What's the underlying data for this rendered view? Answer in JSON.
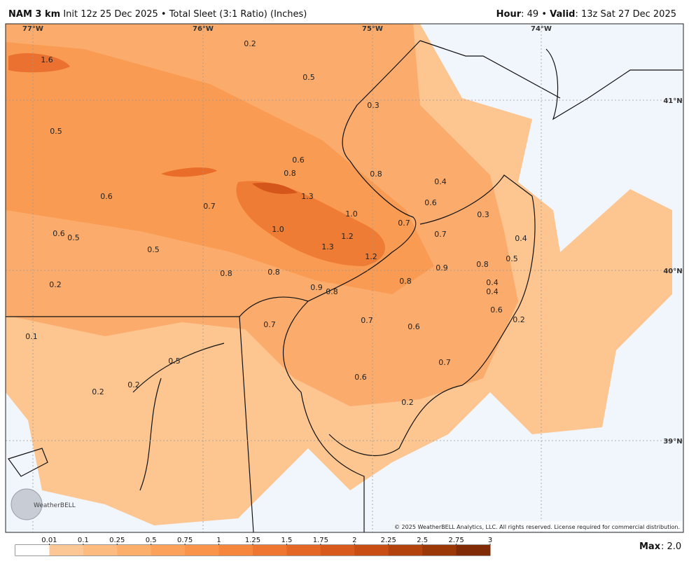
{
  "header": {
    "model": "NAM 3 km",
    "run": "Init 12z 25 Dec 2025 • Total Sleet (3:1 Ratio) (Inches)",
    "hour_label": "Hour",
    "hour": ": 49 •",
    "valid_label": "Valid",
    "valid": ": 13z Sat 27 Dec 2025"
  },
  "map": {
    "lon_labels": [
      "77°W",
      "76°W",
      "75°W",
      "74°W"
    ],
    "lat_labels": [
      "41°N",
      "40°N",
      "39°N"
    ],
    "point_labels": [
      "0.2",
      "1.6",
      "0.5",
      "0.3",
      "0.5",
      "0.6",
      "0.8",
      "0.8",
      "0.4",
      "0.6",
      "1.3",
      "0.6",
      "0.7",
      "1.0",
      "0.3",
      "0.7",
      "1.0",
      "0.6",
      "0.5",
      "1.2",
      "0.7",
      "0.4",
      "0.5",
      "1.3",
      "1.2",
      "0.5",
      "0.9",
      "0.8",
      "0.8",
      "0.8",
      "0.8",
      "0.4",
      "0.2",
      "0.9",
      "0.8",
      "0.4",
      "0.6",
      "0.2",
      "0.7",
      "0.7",
      "0.6",
      "0.1",
      "0.5",
      "0.7",
      "0.2",
      "0.2",
      "0.6",
      "0.2"
    ],
    "copyright": "© 2025 WeatherBELL Analytics, LLC. All rights reserved. License required for commercial distribution.",
    "logo": "WeatherBELL"
  },
  "colorbar": {
    "ticks": [
      0.01,
      0.1,
      0.25,
      0.5,
      0.75,
      1,
      1.25,
      1.5,
      1.75,
      2,
      2.25,
      2.5,
      2.75,
      3
    ],
    "colors": [
      "#ffffff",
      "#fdc795",
      "#fdbb80",
      "#fcae6b",
      "#fba159",
      "#f9944a",
      "#f5863c",
      "#ee7630",
      "#e46725",
      "#d85a1c",
      "#c84e14",
      "#b3430d",
      "#9b3808",
      "#802b05"
    ]
  },
  "max": {
    "label": "Max",
    "value": ": 2.0"
  }
}
